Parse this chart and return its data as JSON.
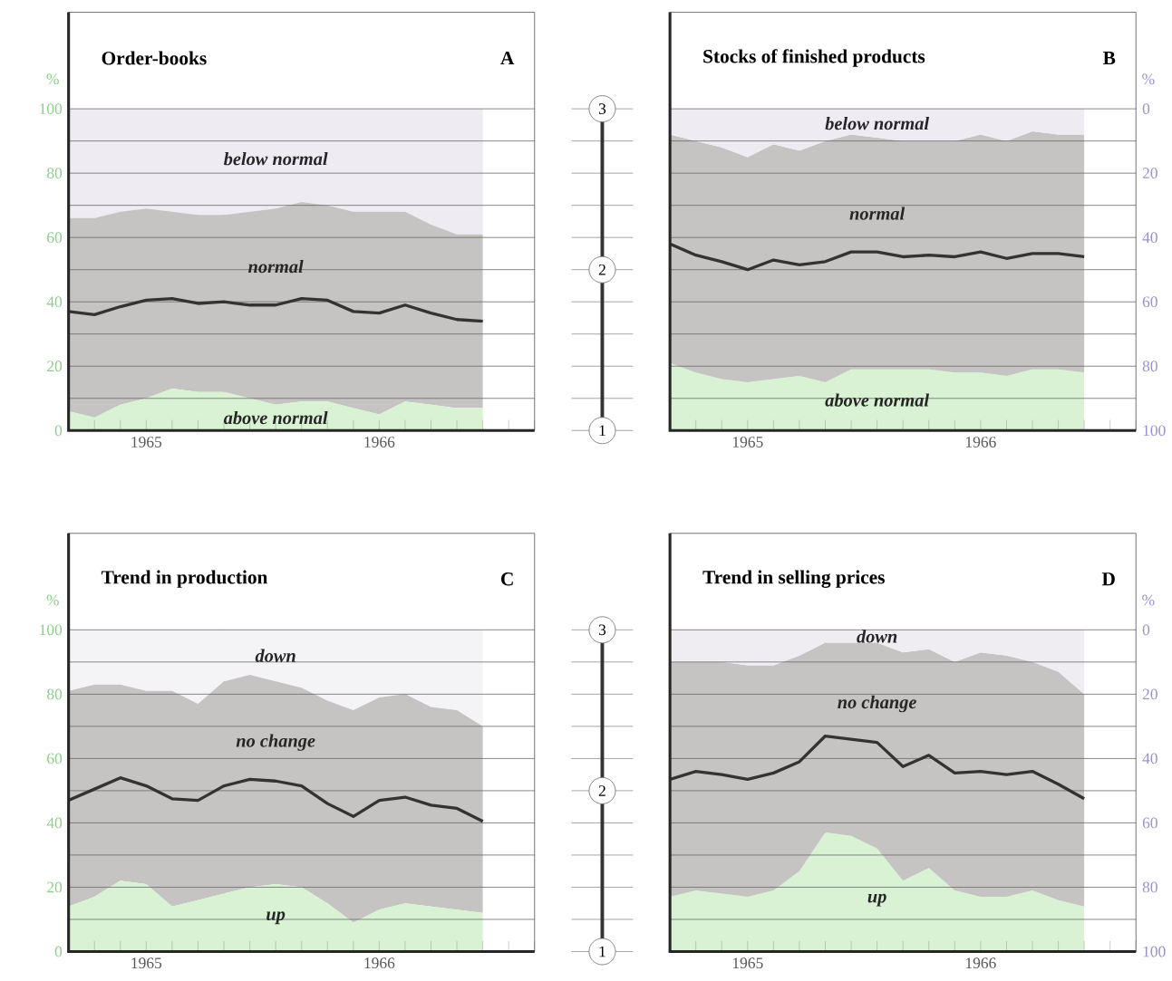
{
  "chart_data": [
    {
      "type": "area",
      "title": "Order-books",
      "annotations": [
        "A"
      ],
      "ylabel": "%",
      "stacked": true,
      "grid": "y",
      "x": [
        "1965-07",
        "1965-08",
        "1965-09",
        "1965-10",
        "1965-11",
        "1965-12",
        "1966-01",
        "1966-02",
        "1966-03",
        "1966-04",
        "1966-05",
        "1966-06",
        "1966-07",
        "1966-08",
        "1966-09",
        "1966-10",
        "1966-11"
      ],
      "xlim": [
        "1965-07",
        "1967-01"
      ],
      "xticks": [
        {
          "value": "1965-07",
          "label": null
        },
        {
          "value": "1965-08",
          "label": null
        },
        {
          "value": "1965-09",
          "label": null
        },
        {
          "value": "1965-10",
          "label": "1965"
        },
        {
          "value": "1965-11",
          "label": null
        },
        {
          "value": "1965-12",
          "label": null
        },
        {
          "value": "1966-01",
          "label": null
        },
        {
          "value": "1966-02",
          "label": null
        },
        {
          "value": "1966-03",
          "label": null
        },
        {
          "value": "1966-04",
          "label": null
        },
        {
          "value": "1966-05",
          "label": null
        },
        {
          "value": "1966-06",
          "label": null
        },
        {
          "value": "1966-07",
          "label": "1966"
        },
        {
          "value": "1966-08",
          "label": null
        },
        {
          "value": "1966-09",
          "label": null
        },
        {
          "value": "1966-10",
          "label": null
        },
        {
          "value": "1966-11",
          "label": null
        },
        {
          "value": "1966-12",
          "label": null
        },
        {
          "value": "1967-01",
          "label": null
        }
      ],
      "ylim": [
        0,
        130
      ],
      "yticks": [
        0,
        {
          "value": 10,
          "label": null
        },
        20,
        {
          "value": 30,
          "label": null
        },
        40,
        {
          "value": 50,
          "label": null
        },
        60,
        {
          "value": 70,
          "label": null
        },
        80,
        {
          "value": 90,
          "label": null
        },
        100
      ],
      "y2lim": [
        1,
        3.6
      ],
      "y2ticks": [
        1,
        {
          "value": 1.2,
          "label": null
        },
        {
          "value": 1.4,
          "label": null
        },
        {
          "value": 1.6,
          "label": null
        },
        {
          "value": 1.8,
          "label": null
        },
        2,
        {
          "value": 2.2,
          "label": null
        },
        {
          "value": 2.4,
          "label": null
        },
        {
          "value": 2.6,
          "label": null
        },
        {
          "value": 2.8,
          "label": null
        },
        3
      ],
      "ref_lines": [
        {
          "axis": "x",
          "value": "1966-01"
        }
      ],
      "series": [
        {
          "name": "above normal",
          "color": "#d9f2d3",
          "values": [
            6,
            4,
            8,
            10,
            13,
            12,
            12,
            10,
            8,
            9,
            9,
            7,
            5,
            9,
            8,
            7,
            7
          ]
        },
        {
          "name": "normal",
          "color": "#c6c4c3",
          "values": [
            60,
            62,
            60,
            59,
            55,
            55,
            55,
            58,
            61,
            62,
            61,
            61,
            63,
            59,
            56,
            54,
            54
          ]
        },
        {
          "name": "below normal",
          "color": "#eeebf3",
          "values": [
            34,
            34,
            32,
            31,
            32,
            33,
            33,
            32,
            31,
            29,
            30,
            32,
            32,
            32,
            36,
            39,
            39
          ]
        },
        {
          "type": "line",
          "axis": "y2",
          "color": "#333333",
          "values": [
            1.74,
            1.72,
            1.77,
            1.81,
            1.82,
            1.79,
            1.8,
            1.78,
            1.78,
            1.82,
            1.81,
            1.74,
            1.73,
            1.78,
            1.73,
            1.69,
            1.68
          ]
        }
      ]
    },
    {
      "type": "area",
      "title": "Stocks of finished products",
      "annotations": [
        "B"
      ],
      "ylabel": "%",
      "stacked": true,
      "grid": "y",
      "x": [
        "1965-07",
        "1965-08",
        "1965-09",
        "1965-10",
        "1965-11",
        "1965-12",
        "1966-01",
        "1966-02",
        "1966-03",
        "1966-04",
        "1966-05",
        "1966-06",
        "1966-07",
        "1966-08",
        "1966-09",
        "1966-10",
        "1966-11"
      ],
      "xlim": [
        "1965-07",
        "1967-01"
      ],
      "xticks": [
        {
          "value": "1965-07",
          "label": null
        },
        {
          "value": "1965-08",
          "label": null
        },
        {
          "value": "1965-09",
          "label": null
        },
        {
          "value": "1965-10",
          "label": "1965"
        },
        {
          "value": "1965-11",
          "label": null
        },
        {
          "value": "1965-12",
          "label": null
        },
        {
          "value": "1966-01",
          "label": null
        },
        {
          "value": "1966-02",
          "label": null
        },
        {
          "value": "1966-03",
          "label": null
        },
        {
          "value": "1966-04",
          "label": null
        },
        {
          "value": "1966-05",
          "label": null
        },
        {
          "value": "1966-06",
          "label": null
        },
        {
          "value": "1966-07",
          "label": "1966"
        },
        {
          "value": "1966-08",
          "label": null
        },
        {
          "value": "1966-09",
          "label": null
        },
        {
          "value": "1966-10",
          "label": null
        },
        {
          "value": "1966-11",
          "label": null
        },
        {
          "value": "1966-12",
          "label": null
        },
        {
          "value": "1967-01",
          "label": null
        }
      ],
      "ylim": [
        100,
        -30
      ],
      "yticks": [
        0,
        {
          "value": 10,
          "label": null
        },
        20,
        {
          "value": 30,
          "label": null
        },
        40,
        {
          "value": 50,
          "label": null
        },
        60,
        {
          "value": 70,
          "label": null
        },
        80,
        {
          "value": 90,
          "label": null
        },
        100
      ],
      "y2lim": [
        1,
        3.6
      ],
      "ref_lines": [
        {
          "axis": "x",
          "value": "1966-01"
        }
      ],
      "series": [
        {
          "name": "below normal",
          "color": "#eeebf3",
          "values": [
            8,
            10,
            12,
            15,
            11,
            13,
            10,
            8,
            9,
            10,
            10,
            10,
            8,
            10,
            7,
            8,
            8
          ]
        },
        {
          "name": "normal",
          "color": "#c6c4c3",
          "values": [
            71,
            72,
            72,
            70,
            73,
            70,
            75,
            73,
            72,
            71,
            71,
            72,
            74,
            73,
            74,
            73,
            74
          ]
        },
        {
          "name": "above normal",
          "color": "#d9f2d3",
          "values": [
            21,
            18,
            16,
            15,
            16,
            17,
            15,
            19,
            19,
            19,
            19,
            18,
            18,
            17,
            19,
            19,
            18
          ]
        },
        {
          "type": "line",
          "axis": "y2",
          "color": "#333333",
          "values": [
            2.16,
            2.09,
            2.05,
            2.0,
            2.06,
            2.03,
            2.05,
            2.11,
            2.11,
            2.08,
            2.09,
            2.08,
            2.11,
            2.07,
            2.1,
            2.1,
            2.08
          ]
        }
      ]
    },
    {
      "type": "area",
      "title": "Trend in production",
      "annotations": [
        "C"
      ],
      "ylabel": "%",
      "stacked": true,
      "grid": "y",
      "x": [
        "1965-07",
        "1965-08",
        "1965-09",
        "1965-10",
        "1965-11",
        "1965-12",
        "1966-01",
        "1966-02",
        "1966-03",
        "1966-04",
        "1966-05",
        "1966-06",
        "1966-07",
        "1966-08",
        "1966-09",
        "1966-10",
        "1966-11"
      ],
      "xlim": [
        "1965-07",
        "1967-01"
      ],
      "xticks": [
        {
          "value": "1965-07",
          "label": null
        },
        {
          "value": "1965-08",
          "label": null
        },
        {
          "value": "1965-09",
          "label": null
        },
        {
          "value": "1965-10",
          "label": "1965"
        },
        {
          "value": "1965-11",
          "label": null
        },
        {
          "value": "1965-12",
          "label": null
        },
        {
          "value": "1966-01",
          "label": null
        },
        {
          "value": "1966-02",
          "label": null
        },
        {
          "value": "1966-03",
          "label": null
        },
        {
          "value": "1966-04",
          "label": null
        },
        {
          "value": "1966-05",
          "label": null
        },
        {
          "value": "1966-06",
          "label": null
        },
        {
          "value": "1966-07",
          "label": "1966"
        },
        {
          "value": "1966-08",
          "label": null
        },
        {
          "value": "1966-09",
          "label": null
        },
        {
          "value": "1966-10",
          "label": null
        },
        {
          "value": "1966-11",
          "label": null
        },
        {
          "value": "1966-12",
          "label": null
        },
        {
          "value": "1967-01",
          "label": null
        }
      ],
      "ylim": [
        0,
        130
      ],
      "yticks": [
        0,
        {
          "value": 10,
          "label": null
        },
        20,
        {
          "value": 30,
          "label": null
        },
        40,
        {
          "value": 50,
          "label": null
        },
        60,
        {
          "value": 70,
          "label": null
        },
        80,
        {
          "value": 90,
          "label": null
        },
        100
      ],
      "y2lim": [
        1,
        3.6
      ],
      "y2ticks": [
        1,
        {
          "value": 1.2,
          "label": null
        },
        {
          "value": 1.4,
          "label": null
        },
        {
          "value": 1.6,
          "label": null
        },
        {
          "value": 1.8,
          "label": null
        },
        2,
        {
          "value": 2.2,
          "label": null
        },
        {
          "value": 2.4,
          "label": null
        },
        {
          "value": 2.6,
          "label": null
        },
        {
          "value": 2.8,
          "label": null
        },
        3
      ],
      "ref_lines": [
        {
          "axis": "x",
          "value": "1966-01"
        }
      ],
      "series": [
        {
          "name": "up",
          "color": "#d9f2d3",
          "values": [
            14,
            17,
            22,
            21,
            14,
            16,
            18,
            20,
            21,
            20,
            15,
            9,
            13,
            15,
            14,
            13,
            12
          ]
        },
        {
          "name": "no change",
          "color": "#c6c4c3",
          "values": [
            67,
            66,
            61,
            60,
            67,
            61,
            66,
            66,
            63,
            62,
            63,
            66,
            66,
            65,
            62,
            62,
            58
          ]
        },
        {
          "name": "down",
          "color": "#f4f3f6",
          "values": [
            19,
            17,
            17,
            19,
            19,
            23,
            16,
            14,
            16,
            18,
            22,
            25,
            21,
            20,
            24,
            25,
            30
          ]
        },
        {
          "type": "line",
          "axis": "y2",
          "color": "#333333",
          "values": [
            1.94,
            2.01,
            2.08,
            2.03,
            1.95,
            1.94,
            2.03,
            2.07,
            2.06,
            2.03,
            1.92,
            1.84,
            1.94,
            1.96,
            1.91,
            1.89,
            1.81
          ]
        }
      ]
    },
    {
      "type": "area",
      "title": "Trend in selling prices",
      "annotations": [
        "D"
      ],
      "ylabel": "%",
      "stacked": true,
      "grid": "y",
      "x": [
        "1965-07",
        "1965-08",
        "1965-09",
        "1965-10",
        "1965-11",
        "1965-12",
        "1966-01",
        "1966-02",
        "1966-03",
        "1966-04",
        "1966-05",
        "1966-06",
        "1966-07",
        "1966-08",
        "1966-09",
        "1966-10",
        "1966-11"
      ],
      "xlim": [
        "1965-07",
        "1967-01"
      ],
      "xticks": [
        {
          "value": "1965-07",
          "label": null
        },
        {
          "value": "1965-08",
          "label": null
        },
        {
          "value": "1965-09",
          "label": null
        },
        {
          "value": "1965-10",
          "label": "1965"
        },
        {
          "value": "1965-11",
          "label": null
        },
        {
          "value": "1965-12",
          "label": null
        },
        {
          "value": "1966-01",
          "label": null
        },
        {
          "value": "1966-02",
          "label": null
        },
        {
          "value": "1966-03",
          "label": null
        },
        {
          "value": "1966-04",
          "label": null
        },
        {
          "value": "1966-05",
          "label": null
        },
        {
          "value": "1966-06",
          "label": null
        },
        {
          "value": "1966-07",
          "label": "1966"
        },
        {
          "value": "1966-08",
          "label": null
        },
        {
          "value": "1966-09",
          "label": null
        },
        {
          "value": "1966-10",
          "label": null
        },
        {
          "value": "1966-11",
          "label": null
        },
        {
          "value": "1966-12",
          "label": null
        },
        {
          "value": "1967-01",
          "label": null
        }
      ],
      "ylim": [
        100,
        -30
      ],
      "yticks": [
        0,
        {
          "value": 10,
          "label": null
        },
        20,
        {
          "value": 30,
          "label": null
        },
        40,
        {
          "value": 50,
          "label": null
        },
        60,
        {
          "value": 70,
          "label": null
        },
        80,
        {
          "value": 90,
          "label": null
        },
        100
      ],
      "y2lim": [
        1,
        3.6
      ],
      "ref_lines": [
        {
          "axis": "x",
          "value": "1966-01"
        }
      ],
      "series": [
        {
          "name": "down",
          "color": "#efedf2",
          "values": [
            10,
            10,
            10,
            11,
            11,
            8,
            4,
            4,
            4,
            7,
            6,
            10,
            7,
            8,
            10,
            13,
            20
          ]
        },
        {
          "name": "no change",
          "color": "#c6c4c3",
          "values": [
            73,
            71,
            72,
            72,
            70,
            67,
            59,
            60,
            64,
            71,
            68,
            71,
            76,
            75,
            71,
            71,
            66
          ]
        },
        {
          "name": "up",
          "color": "#d9f2d3",
          "values": [
            17,
            19,
            18,
            17,
            19,
            25,
            37,
            36,
            32,
            22,
            26,
            19,
            17,
            17,
            19,
            16,
            14
          ]
        },
        {
          "type": "line",
          "axis": "y2",
          "color": "#333333",
          "values": [
            2.07,
            2.12,
            2.1,
            2.07,
            2.11,
            2.18,
            2.34,
            2.32,
            2.3,
            2.15,
            2.22,
            2.11,
            2.12,
            2.1,
            2.12,
            2.04,
            1.95
          ]
        }
      ]
    }
  ]
}
